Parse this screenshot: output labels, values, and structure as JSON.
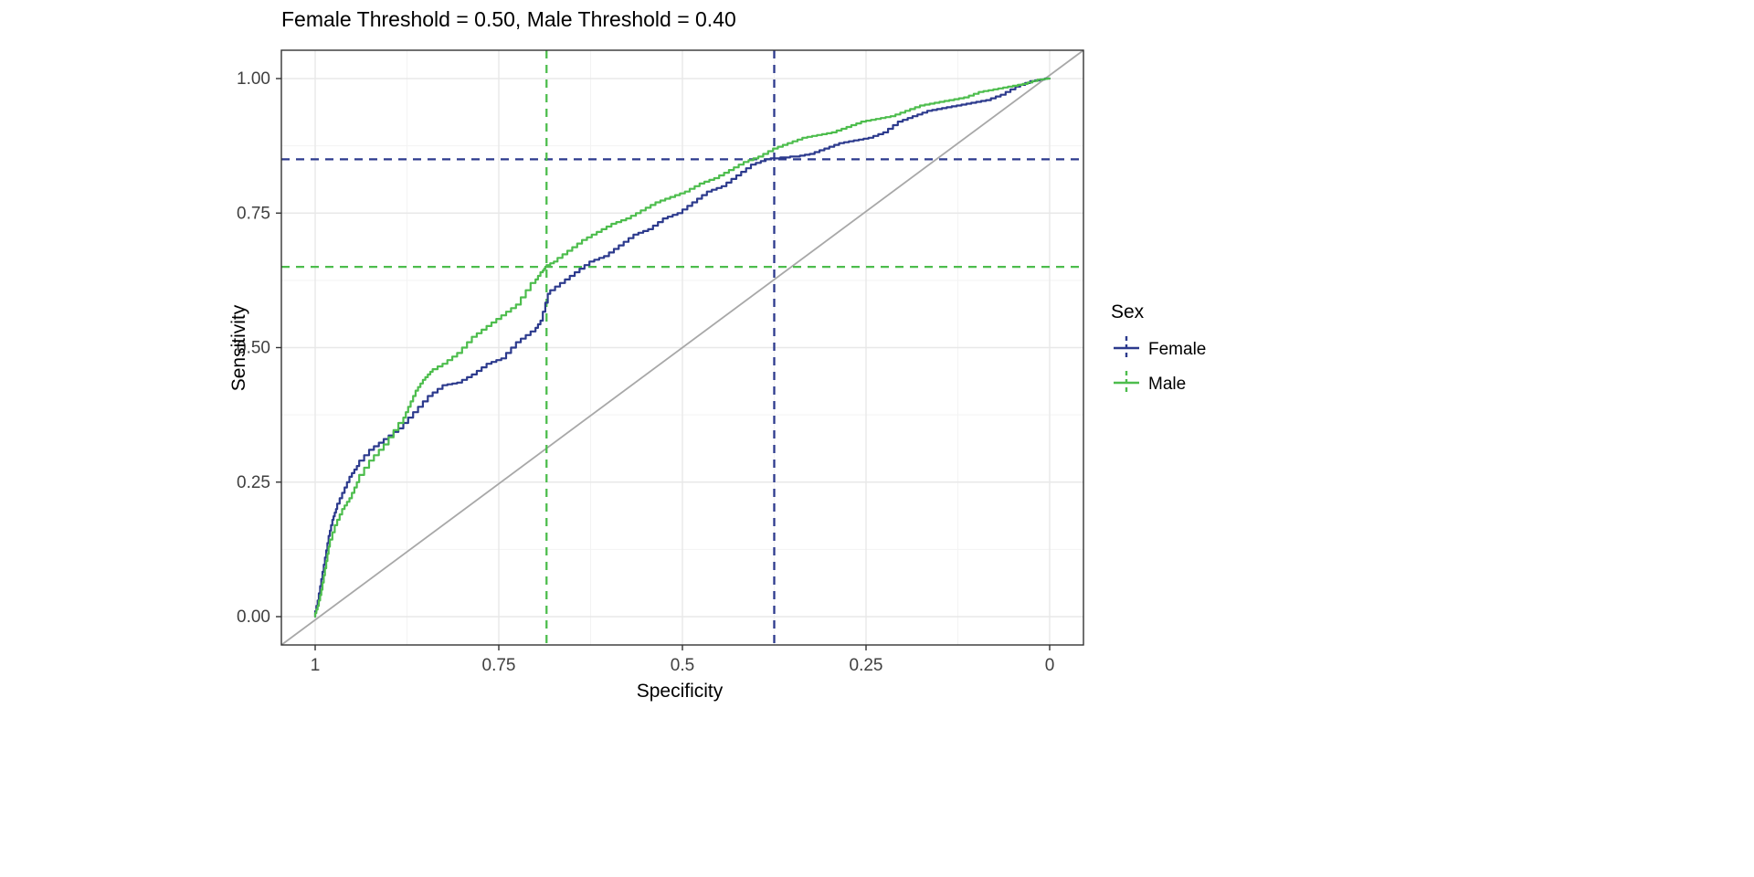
{
  "chart_data": {
    "type": "line",
    "title": "Female Threshold = 0.50, Male Threshold = 0.40",
    "xlabel": "Specificity",
    "ylabel": "Sensitivity",
    "x_reversed": true,
    "xlim": [
      1,
      0
    ],
    "ylim": [
      0,
      1
    ],
    "grid": true,
    "x_ticks": {
      "values": [
        1,
        0.75,
        0.5,
        0.25,
        0
      ],
      "labels": [
        "1",
        "0.75",
        "0.5",
        "0.25",
        "0"
      ]
    },
    "y_ticks": {
      "values": [
        0,
        0.25,
        0.5,
        0.75,
        1
      ],
      "labels": [
        "0.00",
        "0.25",
        "0.50",
        "0.75",
        "1.00"
      ]
    },
    "minor_ticks": [
      0.125,
      0.375,
      0.625,
      0.875
    ],
    "legend": {
      "title": "Sex",
      "position": "right"
    },
    "diagonal": {
      "color": "#A8A8A8",
      "from": [
        1,
        0
      ],
      "to": [
        0,
        1
      ]
    },
    "grid_major_color": "#E8E8E8",
    "grid_minor_color": "#F3F3F3",
    "panel_border_color": "#333333",
    "series": [
      {
        "name": "Female",
        "color": "#2C3A8D",
        "threshold": 0.5,
        "hline_sensitivity": 0.85,
        "vline_specificity": 0.375,
        "points": [
          [
            1.0,
            0.0
          ],
          [
            0.995,
            0.03
          ],
          [
            0.99,
            0.07
          ],
          [
            0.985,
            0.11
          ],
          [
            0.98,
            0.15
          ],
          [
            0.975,
            0.18
          ],
          [
            0.97,
            0.2
          ],
          [
            0.96,
            0.23
          ],
          [
            0.95,
            0.26
          ],
          [
            0.94,
            0.28
          ],
          [
            0.92,
            0.31
          ],
          [
            0.9,
            0.33
          ],
          [
            0.88,
            0.35
          ],
          [
            0.86,
            0.38
          ],
          [
            0.84,
            0.41
          ],
          [
            0.82,
            0.43
          ],
          [
            0.8,
            0.435
          ],
          [
            0.78,
            0.45
          ],
          [
            0.76,
            0.47
          ],
          [
            0.74,
            0.48
          ],
          [
            0.72,
            0.51
          ],
          [
            0.7,
            0.53
          ],
          [
            0.69,
            0.55
          ],
          [
            0.68,
            0.6
          ],
          [
            0.66,
            0.62
          ],
          [
            0.64,
            0.64
          ],
          [
            0.62,
            0.66
          ],
          [
            0.6,
            0.67
          ],
          [
            0.58,
            0.69
          ],
          [
            0.56,
            0.71
          ],
          [
            0.54,
            0.72
          ],
          [
            0.52,
            0.74
          ],
          [
            0.5,
            0.75
          ],
          [
            0.48,
            0.77
          ],
          [
            0.46,
            0.79
          ],
          [
            0.44,
            0.8
          ],
          [
            0.42,
            0.82
          ],
          [
            0.4,
            0.84
          ],
          [
            0.38,
            0.85
          ],
          [
            0.34,
            0.855
          ],
          [
            0.32,
            0.86
          ],
          [
            0.3,
            0.87
          ],
          [
            0.28,
            0.88
          ],
          [
            0.26,
            0.885
          ],
          [
            0.24,
            0.89
          ],
          [
            0.22,
            0.9
          ],
          [
            0.2,
            0.92
          ],
          [
            0.18,
            0.93
          ],
          [
            0.16,
            0.94
          ],
          [
            0.14,
            0.945
          ],
          [
            0.12,
            0.95
          ],
          [
            0.1,
            0.955
          ],
          [
            0.08,
            0.96
          ],
          [
            0.06,
            0.97
          ],
          [
            0.04,
            0.985
          ],
          [
            0.02,
            0.995
          ],
          [
            0.0,
            1.0
          ]
        ]
      },
      {
        "name": "Male",
        "color": "#4DBD4D",
        "threshold": 0.4,
        "hline_sensitivity": 0.65,
        "vline_specificity": 0.685,
        "points": [
          [
            1.0,
            0.0
          ],
          [
            0.995,
            0.02
          ],
          [
            0.99,
            0.05
          ],
          [
            0.985,
            0.09
          ],
          [
            0.98,
            0.13
          ],
          [
            0.97,
            0.17
          ],
          [
            0.96,
            0.2
          ],
          [
            0.95,
            0.22
          ],
          [
            0.94,
            0.25
          ],
          [
            0.92,
            0.29
          ],
          [
            0.9,
            0.32
          ],
          [
            0.88,
            0.36
          ],
          [
            0.87,
            0.39
          ],
          [
            0.86,
            0.42
          ],
          [
            0.85,
            0.44
          ],
          [
            0.84,
            0.455
          ],
          [
            0.82,
            0.47
          ],
          [
            0.8,
            0.49
          ],
          [
            0.78,
            0.52
          ],
          [
            0.76,
            0.54
          ],
          [
            0.74,
            0.56
          ],
          [
            0.72,
            0.58
          ],
          [
            0.7,
            0.62
          ],
          [
            0.69,
            0.64
          ],
          [
            0.685,
            0.65
          ],
          [
            0.67,
            0.66
          ],
          [
            0.65,
            0.68
          ],
          [
            0.63,
            0.7
          ],
          [
            0.61,
            0.715
          ],
          [
            0.59,
            0.73
          ],
          [
            0.57,
            0.74
          ],
          [
            0.55,
            0.755
          ],
          [
            0.53,
            0.77
          ],
          [
            0.51,
            0.78
          ],
          [
            0.49,
            0.79
          ],
          [
            0.47,
            0.805
          ],
          [
            0.45,
            0.815
          ],
          [
            0.43,
            0.83
          ],
          [
            0.41,
            0.845
          ],
          [
            0.39,
            0.855
          ],
          [
            0.37,
            0.87
          ],
          [
            0.35,
            0.88
          ],
          [
            0.33,
            0.89
          ],
          [
            0.31,
            0.895
          ],
          [
            0.29,
            0.9
          ],
          [
            0.27,
            0.91
          ],
          [
            0.25,
            0.92
          ],
          [
            0.23,
            0.925
          ],
          [
            0.21,
            0.93
          ],
          [
            0.19,
            0.94
          ],
          [
            0.17,
            0.95
          ],
          [
            0.15,
            0.955
          ],
          [
            0.13,
            0.96
          ],
          [
            0.11,
            0.965
          ],
          [
            0.09,
            0.975
          ],
          [
            0.07,
            0.98
          ],
          [
            0.05,
            0.985
          ],
          [
            0.03,
            0.99
          ],
          [
            0.01,
            0.998
          ],
          [
            0.0,
            1.0
          ]
        ]
      }
    ]
  }
}
